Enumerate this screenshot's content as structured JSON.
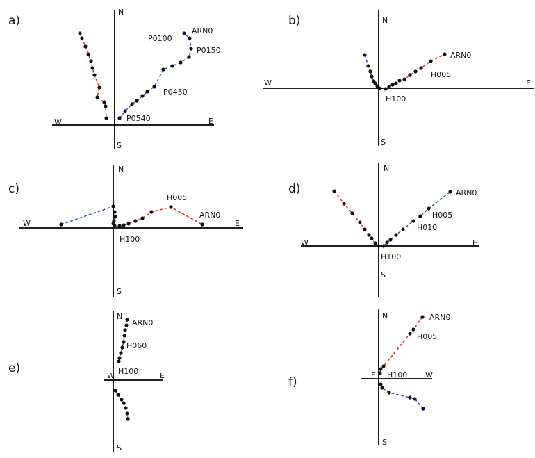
{
  "panels": [
    {
      "label": "a)",
      "top": "N",
      "bottom": "S",
      "left": "W",
      "right": "E",
      "annotations": [
        "ARN0",
        "P0100",
        "P0150",
        "P0450",
        "P0540"
      ]
    },
    {
      "label": "b)",
      "top": "N",
      "bottom": "S",
      "left": "W",
      "right": "E",
      "annotations": [
        "ARN0",
        "H005",
        "H100"
      ]
    },
    {
      "label": "c)",
      "top": "N",
      "bottom": "S",
      "left": "W",
      "right": "E",
      "annotations": [
        "H005",
        "ARN0",
        "H100"
      ]
    },
    {
      "label": "d)",
      "top": "N",
      "bottom": "S",
      "left": "W",
      "right": "E",
      "annotations": [
        "ARN0",
        "H005",
        "H010",
        "H100"
      ]
    },
    {
      "label": "e)",
      "top": "N",
      "bottom": "S",
      "left": "W",
      "right": "E",
      "annotations": [
        "ARN0",
        "H060",
        "H100"
      ]
    },
    {
      "label": "f)",
      "top": "N",
      "bottom": "S",
      "left": "E",
      "right": "W",
      "annotations": [
        "ARN0",
        "H005",
        "H100"
      ]
    }
  ]
}
